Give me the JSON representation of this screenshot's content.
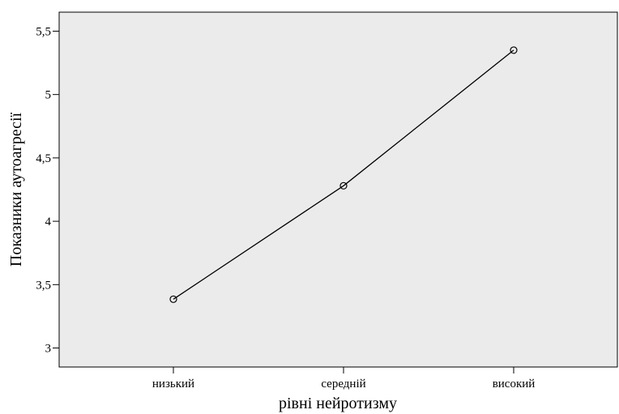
{
  "chart_data": {
    "type": "line",
    "title": "",
    "xlabel": "рівні нейротизму",
    "ylabel": "Показники аутоагресії",
    "categories": [
      "низький",
      "середній",
      "високий"
    ],
    "series": [
      {
        "values": [
          3.385,
          4.28,
          5.35
        ],
        "color": "#000000",
        "marker": "open-circle"
      }
    ],
    "ylim": [
      2.85,
      5.65
    ],
    "yticks": [
      3,
      3.5,
      4,
      4.5,
      5,
      5.5
    ],
    "ytick_labels": [
      "3",
      "3,5",
      "4",
      "4,5",
      "5",
      "5,5"
    ],
    "grid": false,
    "plot_background": "#ebebeb",
    "legend": "none"
  }
}
